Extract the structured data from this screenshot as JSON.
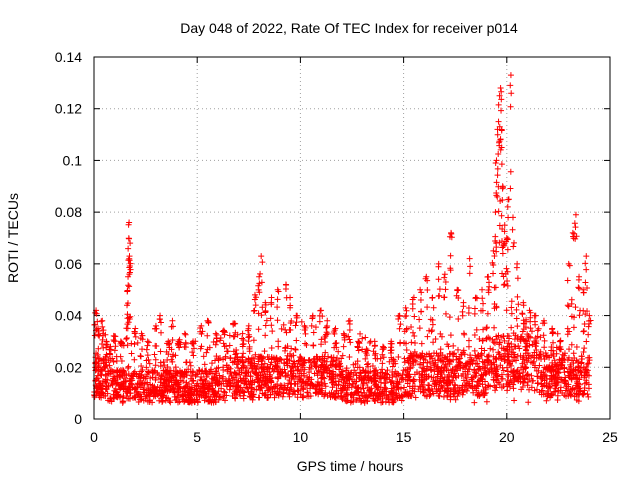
{
  "chart_data": {
    "type": "scatter",
    "title": "Day 048 of 2022, Rate Of TEC Index for receiver p014",
    "xlabel": "GPS time / hours",
    "ylabel": "ROTI / TECUs",
    "xlim": [
      0,
      25
    ],
    "ylim": [
      0,
      0.14
    ],
    "xticks": [
      0,
      5,
      10,
      15,
      20,
      25
    ],
    "yticks": [
      0,
      0.02,
      0.04,
      0.06,
      0.08,
      0.1,
      0.12,
      0.14
    ],
    "x_tick_labels": [
      "0",
      "5",
      "10",
      "15",
      "20",
      "25"
    ],
    "y_tick_labels": [
      "0",
      "0.02",
      "0.04",
      "0.06",
      "0.08",
      "0.1",
      "0.12",
      "0.14"
    ],
    "grid": true,
    "marker": "+",
    "marker_color": "#ff0000",
    "series": [
      {
        "name": "ROTI",
        "points": [
          [
            0.1,
            0.042
          ],
          [
            0.2,
            0.035
          ],
          [
            0.4,
            0.038
          ],
          [
            0.6,
            0.03
          ],
          [
            0.8,
            0.028
          ],
          [
            1.0,
            0.032
          ],
          [
            1.3,
            0.03
          ],
          [
            1.6,
            0.044
          ],
          [
            1.65,
            0.055
          ],
          [
            1.7,
            0.076
          ],
          [
            1.75,
            0.068
          ],
          [
            1.72,
            0.063
          ],
          [
            2.0,
            0.035
          ],
          [
            2.3,
            0.033
          ],
          [
            2.6,
            0.03
          ],
          [
            3.0,
            0.036
          ],
          [
            3.2,
            0.04
          ],
          [
            3.6,
            0.03
          ],
          [
            3.8,
            0.038
          ],
          [
            4.1,
            0.03
          ],
          [
            4.4,
            0.033
          ],
          [
            4.8,
            0.03
          ],
          [
            5.2,
            0.036
          ],
          [
            5.5,
            0.038
          ],
          [
            5.9,
            0.033
          ],
          [
            6.3,
            0.034
          ],
          [
            6.8,
            0.037
          ],
          [
            7.2,
            0.033
          ],
          [
            7.5,
            0.036
          ],
          [
            7.8,
            0.048
          ],
          [
            8.0,
            0.055
          ],
          [
            8.1,
            0.063
          ],
          [
            8.3,
            0.045
          ],
          [
            8.6,
            0.047
          ],
          [
            8.9,
            0.05
          ],
          [
            9.3,
            0.052
          ],
          [
            9.5,
            0.047
          ],
          [
            9.8,
            0.04
          ],
          [
            10.2,
            0.036
          ],
          [
            10.6,
            0.04
          ],
          [
            11.0,
            0.042
          ],
          [
            11.3,
            0.038
          ],
          [
            11.7,
            0.035
          ],
          [
            12.1,
            0.033
          ],
          [
            12.4,
            0.038
          ],
          [
            12.8,
            0.03
          ],
          [
            13.2,
            0.027
          ],
          [
            13.6,
            0.03
          ],
          [
            14.0,
            0.028
          ],
          [
            14.4,
            0.03
          ],
          [
            14.8,
            0.04
          ],
          [
            15.1,
            0.043
          ],
          [
            15.5,
            0.047
          ],
          [
            15.8,
            0.05
          ],
          [
            16.1,
            0.055
          ],
          [
            16.4,
            0.047
          ],
          [
            16.7,
            0.06
          ],
          [
            17.0,
            0.056
          ],
          [
            17.3,
            0.072
          ],
          [
            17.6,
            0.05
          ],
          [
            17.9,
            0.045
          ],
          [
            18.2,
            0.062
          ],
          [
            18.5,
            0.047
          ],
          [
            18.8,
            0.05
          ],
          [
            19.1,
            0.055
          ],
          [
            19.35,
            0.065
          ],
          [
            19.45,
            0.08
          ],
          [
            19.5,
            0.1
          ],
          [
            19.55,
            0.112
          ],
          [
            19.6,
            0.115
          ],
          [
            19.65,
            0.125
          ],
          [
            19.7,
            0.128
          ],
          [
            19.75,
            0.105
          ],
          [
            19.8,
            0.09
          ],
          [
            19.9,
            0.075
          ],
          [
            20.0,
            0.07
          ],
          [
            20.1,
            0.085
          ],
          [
            20.2,
            0.133
          ],
          [
            20.3,
            0.078
          ],
          [
            20.5,
            0.06
          ],
          [
            20.8,
            0.045
          ],
          [
            21.1,
            0.042
          ],
          [
            21.4,
            0.04
          ],
          [
            21.8,
            0.038
          ],
          [
            22.2,
            0.035
          ],
          [
            22.6,
            0.03
          ],
          [
            23.0,
            0.06
          ],
          [
            23.2,
            0.072
          ],
          [
            23.35,
            0.079
          ],
          [
            23.5,
            0.055
          ],
          [
            23.7,
            0.05
          ],
          [
            23.85,
            0.063
          ],
          [
            24.0,
            0.04
          ]
        ]
      }
    ]
  }
}
